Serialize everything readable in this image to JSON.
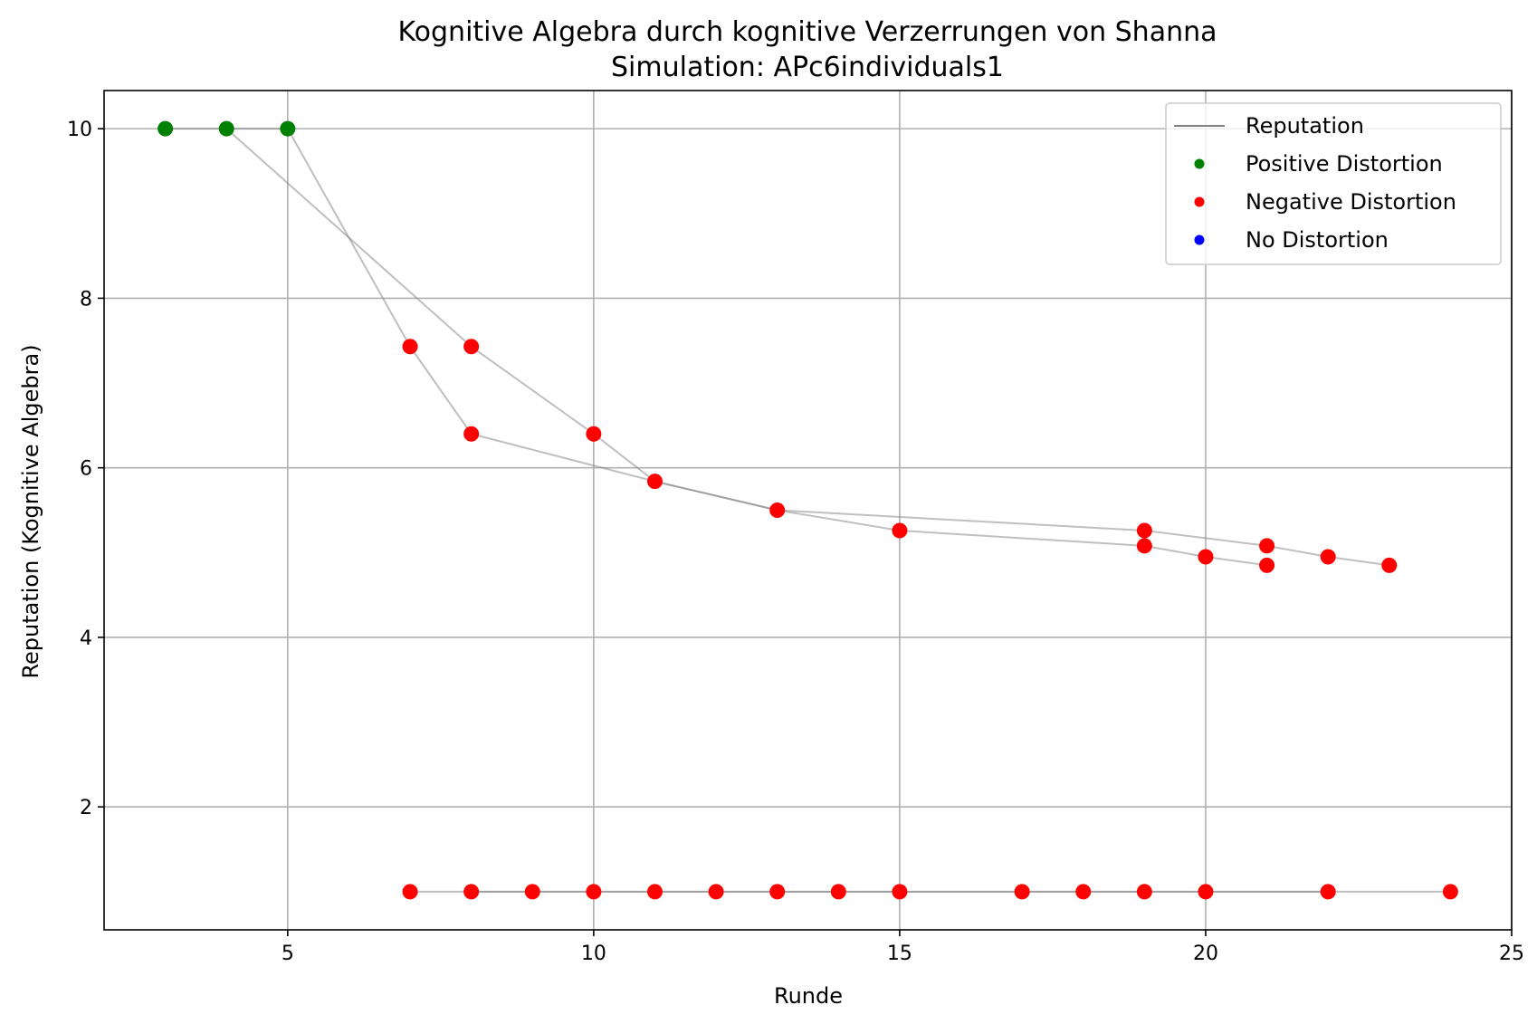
{
  "chart_data": {
    "type": "scatter",
    "title": "Kognitive Algebra durch kognitive Verzerrungen von Shanna",
    "subtitle": "Simulation: APc6individuals1",
    "xlabel": "Runde",
    "ylabel": "Reputation (Kognitive Algebra)",
    "xlim": [
      2.0,
      25.0
    ],
    "ylim": [
      0.55,
      10.45
    ],
    "xticks": [
      5,
      10,
      15,
      20,
      25
    ],
    "yticks": [
      2,
      4,
      6,
      8,
      10
    ],
    "grid": true,
    "legend_position": "top-right",
    "legend": [
      {
        "label": "Reputation",
        "kind": "line",
        "color": "#808080"
      },
      {
        "label": "Positive Distortion",
        "kind": "point",
        "color": "#008000"
      },
      {
        "label": "Negative Distortion",
        "kind": "point",
        "color": "#ff0000"
      },
      {
        "label": "No Distortion",
        "kind": "point",
        "color": "#0000ff"
      }
    ],
    "line_color": "#808080",
    "lines": [
      {
        "points": [
          [
            3,
            10
          ],
          [
            4,
            10
          ],
          [
            8,
            7.43
          ],
          [
            10,
            6.4
          ],
          [
            11,
            5.84
          ],
          [
            13,
            5.5
          ],
          [
            15,
            5.26
          ],
          [
            19,
            5.08
          ],
          [
            20,
            4.95
          ],
          [
            21,
            4.85
          ]
        ]
      },
      {
        "points": [
          [
            4,
            10
          ],
          [
            5,
            10
          ],
          [
            7,
            7.43
          ],
          [
            8,
            6.4
          ],
          [
            11,
            5.84
          ],
          [
            13,
            5.5
          ],
          [
            19,
            5.26
          ],
          [
            21,
            5.08
          ],
          [
            22,
            4.95
          ],
          [
            23,
            4.85
          ]
        ]
      },
      {
        "points": [
          [
            7,
            1
          ],
          [
            8,
            1
          ],
          [
            9,
            1
          ],
          [
            10,
            1
          ],
          [
            11,
            1
          ],
          [
            12,
            1
          ],
          [
            13,
            1
          ],
          [
            14,
            1
          ],
          [
            15,
            1
          ],
          [
            17,
            1
          ],
          [
            18,
            1
          ],
          [
            19,
            1
          ],
          [
            20,
            1
          ],
          [
            22,
            1
          ],
          [
            24,
            1
          ]
        ]
      },
      {
        "points": [
          [
            8,
            1
          ],
          [
            10,
            1
          ],
          [
            11,
            1
          ],
          [
            13,
            1
          ],
          [
            15,
            1
          ],
          [
            19,
            1
          ],
          [
            20,
            1
          ],
          [
            22,
            1
          ]
        ]
      }
    ],
    "series": [
      {
        "name": "Positive Distortion",
        "color": "#008000",
        "points": [
          [
            3,
            10
          ],
          [
            4,
            10
          ],
          [
            5,
            10
          ]
        ]
      },
      {
        "name": "Negative Distortion",
        "color": "#ff0000",
        "points": [
          [
            7,
            7.43
          ],
          [
            8,
            7.43
          ],
          [
            8,
            6.4
          ],
          [
            10,
            6.4
          ],
          [
            11,
            5.84
          ],
          [
            13,
            5.5
          ],
          [
            15,
            5.26
          ],
          [
            19,
            5.26
          ],
          [
            19,
            5.08
          ],
          [
            20,
            4.95
          ],
          [
            21,
            5.08
          ],
          [
            21,
            4.85
          ],
          [
            22,
            4.95
          ],
          [
            23,
            4.85
          ],
          [
            7,
            1
          ],
          [
            8,
            1
          ],
          [
            9,
            1
          ],
          [
            10,
            1
          ],
          [
            11,
            1
          ],
          [
            12,
            1
          ],
          [
            13,
            1
          ],
          [
            14,
            1
          ],
          [
            15,
            1
          ],
          [
            17,
            1
          ],
          [
            18,
            1
          ],
          [
            19,
            1
          ],
          [
            20,
            1
          ],
          [
            22,
            1
          ],
          [
            24,
            1
          ]
        ]
      },
      {
        "name": "No Distortion",
        "color": "#0000ff",
        "points": []
      }
    ]
  }
}
